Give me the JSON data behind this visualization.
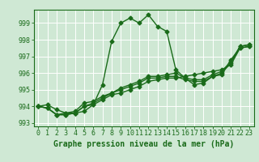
{
  "title": "Graphe pression niveau de la mer (hPa)",
  "background_color": "#cfe8d4",
  "line_color": "#1a6b1a",
  "grid_color": "#ffffff",
  "xlim": [
    -0.5,
    23.5
  ],
  "ylim": [
    992.8,
    999.8
  ],
  "yticks": [
    993,
    994,
    995,
    996,
    997,
    998,
    999
  ],
  "xtick_labels": [
    "0",
    "1",
    "2",
    "3",
    "4",
    "5",
    "6",
    "7",
    "8",
    "9",
    "10",
    "11",
    "12",
    "13",
    "14",
    "15",
    "16",
    "17",
    "18",
    "19",
    "20",
    "21",
    "22",
    "23"
  ],
  "series": [
    [
      994.0,
      994.1,
      993.8,
      993.6,
      993.6,
      993.7,
      994.1,
      995.3,
      997.9,
      999.0,
      999.3,
      999.0,
      999.5,
      998.8,
      998.5,
      996.2,
      995.7,
      995.3,
      995.4,
      995.8,
      995.9,
      996.8,
      997.5,
      997.6
    ],
    [
      994.0,
      993.9,
      993.5,
      993.5,
      993.6,
      994.0,
      994.1,
      994.4,
      994.7,
      994.8,
      995.0,
      995.2,
      995.5,
      995.6,
      995.7,
      995.7,
      995.8,
      995.9,
      996.0,
      996.1,
      996.2,
      996.5,
      997.5,
      997.6
    ],
    [
      994.0,
      993.9,
      993.5,
      993.5,
      993.6,
      994.0,
      994.2,
      994.5,
      994.8,
      995.0,
      995.2,
      995.4,
      995.7,
      995.7,
      995.8,
      995.8,
      995.6,
      995.5,
      995.5,
      995.8,
      996.0,
      996.6,
      997.6,
      997.7
    ],
    [
      994.0,
      993.9,
      993.5,
      993.6,
      993.7,
      994.2,
      994.3,
      994.6,
      994.8,
      995.1,
      995.3,
      995.5,
      995.8,
      995.8,
      995.9,
      996.0,
      995.7,
      995.6,
      995.6,
      995.9,
      996.1,
      996.7,
      997.6,
      997.7
    ]
  ],
  "marker": "D",
  "marker_size": 2.5,
  "line_width": 1.0,
  "title_fontsize": 7,
  "tick_fontsize": 6,
  "figsize": [
    3.2,
    2.0
  ],
  "dpi": 100
}
